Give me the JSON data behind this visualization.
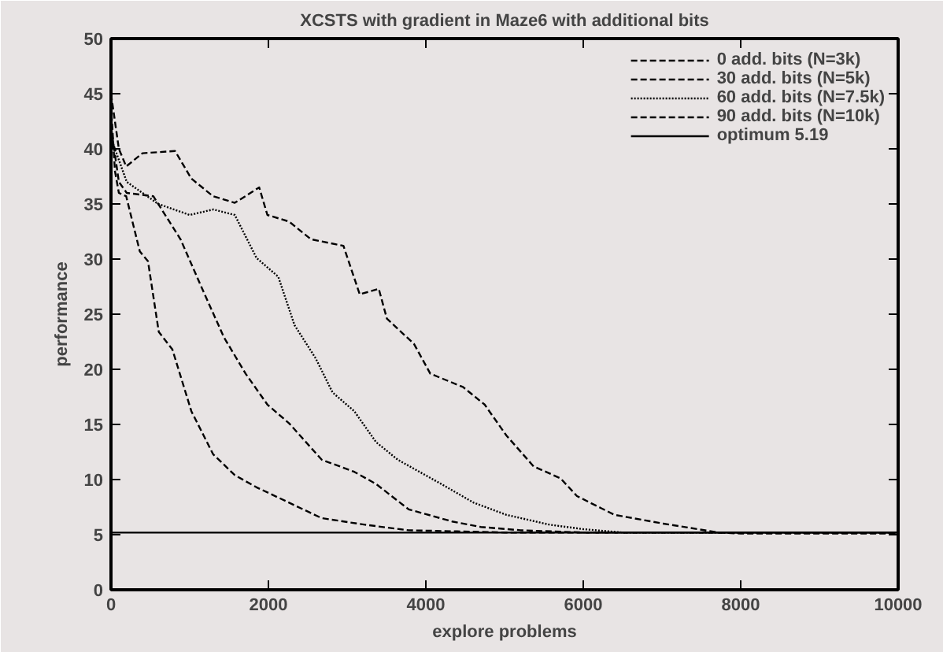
{
  "chart_data": {
    "type": "line",
    "title": "XCSTS with gradient in Maze6 with additional bits",
    "xlabel": "explore problems",
    "ylabel": "performance",
    "xlim": [
      0,
      10000
    ],
    "ylim": [
      0,
      50
    ],
    "xticks": [
      0,
      2000,
      4000,
      6000,
      8000,
      10000
    ],
    "yticks": [
      0,
      5,
      10,
      15,
      20,
      25,
      30,
      35,
      40,
      45,
      50
    ],
    "legend": "top right",
    "marker": "none",
    "series": [
      {
        "name": "0 add. bits (N=3k)",
        "color": "#000000",
        "line_style": "dashed",
        "x": [
          0,
          50,
          100,
          193,
          366,
          470,
          607,
          780,
          1021,
          1297,
          1573,
          1849,
          2263,
          2677,
          3229,
          3781,
          4400,
          5000,
          6000,
          10000
        ],
        "values": [
          44,
          38,
          36,
          35.7,
          30.7,
          29.8,
          23.4,
          21.8,
          16.2,
          12.3,
          10.4,
          9.3,
          7.9,
          6.5,
          5.9,
          5.4,
          5.3,
          5.2,
          5.2,
          5.2
        ]
      },
      {
        "name": "30 add. bits (N=5k)",
        "color": "#000000",
        "line_style": "dashed",
        "x": [
          0,
          100,
          200,
          538,
          883,
          1159,
          1435,
          1711,
          1987,
          2263,
          2677,
          3091,
          3367,
          3781,
          4333,
          4700,
          5200,
          6000,
          10000
        ],
        "values": [
          42,
          37,
          36,
          35.7,
          31.8,
          27.3,
          22.9,
          19.6,
          16.8,
          15.1,
          11.8,
          10.7,
          9.6,
          7.3,
          6.2,
          5.7,
          5.4,
          5.2,
          5.2
        ]
      },
      {
        "name": "60 add. bits (N=7.5k)",
        "color": "#000000",
        "line_style": "dotted",
        "x": [
          0,
          200,
          600,
          1000,
          1300,
          1573,
          1849,
          2125,
          2332,
          2600,
          2815,
          3091,
          3367,
          3643,
          3919,
          4195,
          4609,
          5023,
          5575,
          6000,
          6500,
          10000
        ],
        "values": [
          41,
          37,
          35,
          34,
          34.5,
          34,
          30.1,
          28.4,
          24,
          21,
          17.9,
          16.2,
          13.4,
          11.8,
          10.7,
          9.6,
          7.9,
          6.8,
          5.9,
          5.5,
          5.2,
          5.2
        ]
      },
      {
        "name": "90 add. bits (N=10k)",
        "color": "#000000",
        "line_style": "dashed",
        "x": [
          0,
          100,
          193,
          400,
          814,
          1021,
          1297,
          1573,
          1883,
          1987,
          2263,
          2539,
          2953,
          3160,
          3402,
          3505,
          3850,
          4057,
          4471,
          4747,
          5023,
          5368,
          5713,
          5920,
          6396,
          7017,
          7721,
          8000,
          10000
        ],
        "values": [
          45,
          40,
          38.4,
          39.6,
          39.8,
          37.3,
          35.7,
          35.1,
          36.5,
          34,
          33.4,
          31.8,
          31.2,
          26.8,
          27.3,
          24.6,
          22.3,
          19.6,
          18.4,
          16.8,
          14,
          11.2,
          10.1,
          8.5,
          6.8,
          6,
          5.2,
          5.1,
          5.1
        ]
      },
      {
        "name": "optimum 5.19",
        "color": "#000000",
        "line_style": "solid",
        "x": [
          0,
          10000
        ],
        "values": [
          5.19,
          5.19
        ]
      }
    ]
  }
}
